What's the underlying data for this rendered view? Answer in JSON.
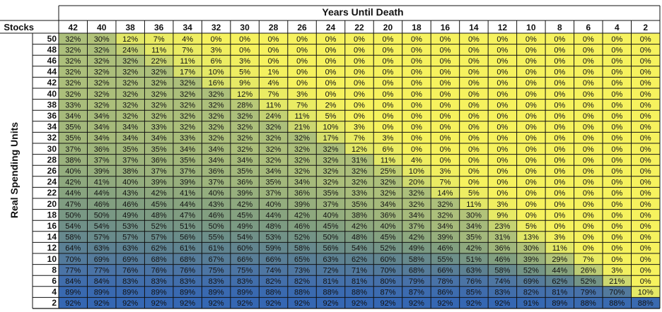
{
  "chart_data": {
    "type": "heatmap",
    "title": "Years Until Death",
    "xlabel": "Years Until Death",
    "ylabel": "Real Spending Units",
    "corner_label": "Stocks",
    "value_suffix": "%",
    "columns": [
      42,
      40,
      38,
      36,
      34,
      32,
      30,
      28,
      26,
      24,
      22,
      20,
      18,
      16,
      14,
      12,
      10,
      8,
      6,
      4,
      2
    ],
    "rows": [
      50,
      48,
      46,
      44,
      42,
      40,
      38,
      36,
      34,
      32,
      30,
      28,
      26,
      24,
      22,
      20,
      18,
      16,
      14,
      12,
      10,
      8,
      6,
      4,
      2
    ],
    "values": [
      [
        32,
        30,
        12,
        7,
        4,
        0,
        0,
        0,
        0,
        0,
        0,
        0,
        0,
        0,
        0,
        0,
        0,
        0,
        0,
        0,
        0
      ],
      [
        32,
        32,
        24,
        11,
        7,
        3,
        0,
        0,
        0,
        0,
        0,
        0,
        0,
        0,
        0,
        0,
        0,
        0,
        0,
        0,
        0
      ],
      [
        32,
        32,
        32,
        22,
        11,
        6,
        3,
        0,
        0,
        0,
        0,
        0,
        0,
        0,
        0,
        0,
        0,
        0,
        0,
        0,
        0
      ],
      [
        32,
        32,
        32,
        32,
        17,
        10,
        5,
        1,
        0,
        0,
        0,
        0,
        0,
        0,
        0,
        0,
        0,
        0,
        0,
        0,
        0
      ],
      [
        32,
        32,
        32,
        32,
        32,
        16,
        9,
        4,
        0,
        0,
        0,
        0,
        0,
        0,
        0,
        0,
        0,
        0,
        0,
        0,
        0
      ],
      [
        32,
        32,
        32,
        32,
        32,
        32,
        12,
        7,
        3,
        0,
        0,
        0,
        0,
        0,
        0,
        0,
        0,
        0,
        0,
        0,
        0
      ],
      [
        33,
        32,
        32,
        32,
        32,
        32,
        28,
        11,
        7,
        2,
        0,
        0,
        0,
        0,
        0,
        0,
        0,
        0,
        0,
        0,
        0
      ],
      [
        34,
        34,
        32,
        32,
        32,
        32,
        32,
        24,
        11,
        5,
        0,
        0,
        0,
        0,
        0,
        0,
        0,
        0,
        0,
        0,
        0
      ],
      [
        35,
        34,
        34,
        33,
        32,
        32,
        32,
        32,
        21,
        10,
        3,
        0,
        0,
        0,
        0,
        0,
        0,
        0,
        0,
        0,
        0
      ],
      [
        35,
        34,
        34,
        34,
        33,
        32,
        32,
        32,
        32,
        17,
        7,
        3,
        0,
        0,
        0,
        0,
        0,
        0,
        0,
        0,
        0
      ],
      [
        37,
        36,
        35,
        35,
        34,
        34,
        32,
        32,
        32,
        32,
        12,
        6,
        0,
        0,
        0,
        0,
        0,
        0,
        0,
        0,
        0
      ],
      [
        38,
        37,
        37,
        36,
        35,
        34,
        34,
        32,
        32,
        32,
        31,
        11,
        4,
        0,
        0,
        0,
        0,
        0,
        0,
        0,
        0
      ],
      [
        40,
        39,
        38,
        37,
        37,
        36,
        35,
        34,
        32,
        32,
        32,
        25,
        10,
        3,
        0,
        0,
        0,
        0,
        0,
        0,
        0
      ],
      [
        42,
        41,
        40,
        39,
        39,
        37,
        36,
        35,
        34,
        32,
        32,
        32,
        20,
        7,
        0,
        0,
        0,
        0,
        0,
        0,
        0
      ],
      [
        44,
        44,
        43,
        42,
        41,
        40,
        39,
        37,
        36,
        35,
        33,
        32,
        32,
        14,
        5,
        0,
        0,
        0,
        0,
        0,
        0
      ],
      [
        47,
        46,
        46,
        45,
        44,
        43,
        42,
        40,
        39,
        37,
        35,
        34,
        32,
        32,
        11,
        3,
        0,
        0,
        0,
        0,
        0
      ],
      [
        50,
        50,
        49,
        48,
        47,
        46,
        45,
        44,
        42,
        40,
        38,
        36,
        34,
        32,
        30,
        9,
        0,
        0,
        0,
        0,
        0
      ],
      [
        54,
        54,
        53,
        52,
        51,
        50,
        49,
        48,
        46,
        45,
        42,
        40,
        37,
        34,
        34,
        23,
        5,
        0,
        0,
        0,
        0
      ],
      [
        58,
        57,
        57,
        57,
        56,
        55,
        54,
        53,
        52,
        50,
        48,
        45,
        42,
        39,
        35,
        31,
        13,
        3,
        0,
        0,
        0
      ],
      [
        64,
        63,
        63,
        62,
        61,
        61,
        60,
        59,
        58,
        56,
        54,
        52,
        49,
        46,
        42,
        36,
        30,
        11,
        0,
        0,
        0
      ],
      [
        70,
        69,
        69,
        68,
        68,
        67,
        66,
        66,
        65,
        63,
        62,
        60,
        58,
        55,
        51,
        46,
        39,
        29,
        7,
        0,
        0
      ],
      [
        77,
        77,
        76,
        76,
        76,
        75,
        75,
        74,
        73,
        72,
        71,
        70,
        68,
        66,
        63,
        58,
        52,
        44,
        26,
        3,
        0
      ],
      [
        84,
        84,
        83,
        83,
        83,
        83,
        83,
        82,
        82,
        81,
        81,
        80,
        79,
        78,
        76,
        74,
        69,
        62,
        52,
        21,
        0
      ],
      [
        89,
        89,
        89,
        89,
        89,
        89,
        89,
        88,
        88,
        88,
        88,
        87,
        87,
        86,
        85,
        83,
        82,
        81,
        79,
        70,
        10
      ],
      [
        92,
        92,
        92,
        92,
        92,
        92,
        92,
        92,
        92,
        92,
        92,
        92,
        92,
        92,
        92,
        92,
        91,
        89,
        88,
        88,
        88
      ]
    ],
    "color_scale": [
      "#f6f25e",
      "#dce46a",
      "#b0c27a",
      "#829f80",
      "#5f8390",
      "#4a73a6",
      "#3567b3"
    ],
    "grid": true
  }
}
